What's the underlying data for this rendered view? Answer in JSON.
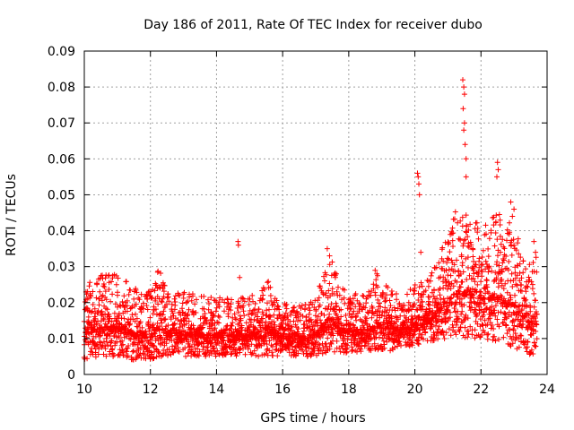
{
  "chart_data": {
    "type": "scatter",
    "title": "Day 186 of 2011, Rate Of TEC Index for receiver dubo",
    "xlabel": "GPS time / hours",
    "ylabel": "ROTI / TECUs",
    "xlim": [
      10,
      24
    ],
    "ylim": [
      0,
      0.09
    ],
    "xticks": [
      10,
      12,
      14,
      16,
      18,
      20,
      22,
      24
    ],
    "yticks": [
      0,
      0.01,
      0.02,
      0.03,
      0.04,
      0.05,
      0.06,
      0.07,
      0.08,
      0.09
    ],
    "ytick_labels": [
      "0",
      "0.01",
      "0.02",
      "0.03",
      "0.04",
      "0.05",
      "0.06",
      "0.07",
      "0.08",
      "0.09"
    ],
    "grid": true,
    "marker": "+",
    "color": "#ff0000",
    "legend": "none",
    "envelope": [
      {
        "x": 10.0,
        "low": 0.004,
        "high": 0.025
      },
      {
        "x": 10.5,
        "low": 0.005,
        "high": 0.028
      },
      {
        "x": 11.0,
        "low": 0.005,
        "high": 0.028
      },
      {
        "x": 11.5,
        "low": 0.004,
        "high": 0.025
      },
      {
        "x": 12.0,
        "low": 0.004,
        "high": 0.024
      },
      {
        "x": 12.25,
        "low": 0.005,
        "high": 0.03
      },
      {
        "x": 12.5,
        "low": 0.005,
        "high": 0.024
      },
      {
        "x": 13.0,
        "low": 0.005,
        "high": 0.023
      },
      {
        "x": 13.5,
        "low": 0.005,
        "high": 0.022
      },
      {
        "x": 14.0,
        "low": 0.005,
        "high": 0.022
      },
      {
        "x": 14.5,
        "low": 0.005,
        "high": 0.021
      },
      {
        "x": 15.0,
        "low": 0.005,
        "high": 0.022
      },
      {
        "x": 15.5,
        "low": 0.005,
        "high": 0.027
      },
      {
        "x": 16.0,
        "low": 0.005,
        "high": 0.02
      },
      {
        "x": 16.5,
        "low": 0.005,
        "high": 0.019
      },
      {
        "x": 17.0,
        "low": 0.005,
        "high": 0.021
      },
      {
        "x": 17.4,
        "low": 0.006,
        "high": 0.034
      },
      {
        "x": 17.8,
        "low": 0.006,
        "high": 0.024
      },
      {
        "x": 18.5,
        "low": 0.006,
        "high": 0.022
      },
      {
        "x": 18.9,
        "low": 0.006,
        "high": 0.028
      },
      {
        "x": 19.5,
        "low": 0.007,
        "high": 0.022
      },
      {
        "x": 20.0,
        "low": 0.008,
        "high": 0.025
      },
      {
        "x": 20.5,
        "low": 0.009,
        "high": 0.028
      },
      {
        "x": 21.0,
        "low": 0.01,
        "high": 0.04
      },
      {
        "x": 21.3,
        "low": 0.01,
        "high": 0.048
      },
      {
        "x": 21.7,
        "low": 0.01,
        "high": 0.045
      },
      {
        "x": 22.0,
        "low": 0.01,
        "high": 0.042
      },
      {
        "x": 22.5,
        "low": 0.009,
        "high": 0.045
      },
      {
        "x": 23.0,
        "low": 0.007,
        "high": 0.042
      },
      {
        "x": 23.5,
        "low": 0.005,
        "high": 0.03
      },
      {
        "x": 23.7,
        "low": 0.007,
        "high": 0.035
      }
    ],
    "outliers": [
      [
        14.65,
        0.037
      ],
      [
        14.66,
        0.036
      ],
      [
        14.7,
        0.027
      ],
      [
        17.35,
        0.035
      ],
      [
        17.42,
        0.033
      ],
      [
        18.8,
        0.029
      ],
      [
        18.85,
        0.028
      ],
      [
        20.08,
        0.056
      ],
      [
        20.1,
        0.055
      ],
      [
        20.12,
        0.053
      ],
      [
        20.14,
        0.05
      ],
      [
        20.18,
        0.034
      ],
      [
        21.45,
        0.082
      ],
      [
        21.48,
        0.08
      ],
      [
        21.5,
        0.078
      ],
      [
        21.46,
        0.074
      ],
      [
        21.5,
        0.07
      ],
      [
        21.48,
        0.068
      ],
      [
        21.52,
        0.064
      ],
      [
        21.55,
        0.06
      ],
      [
        21.55,
        0.055
      ],
      [
        22.5,
        0.059
      ],
      [
        22.52,
        0.057
      ],
      [
        22.48,
        0.055
      ],
      [
        22.9,
        0.048
      ],
      [
        23.0,
        0.046
      ],
      [
        22.95,
        0.044
      ],
      [
        23.6,
        0.037
      ],
      [
        23.65,
        0.034
      ]
    ]
  }
}
